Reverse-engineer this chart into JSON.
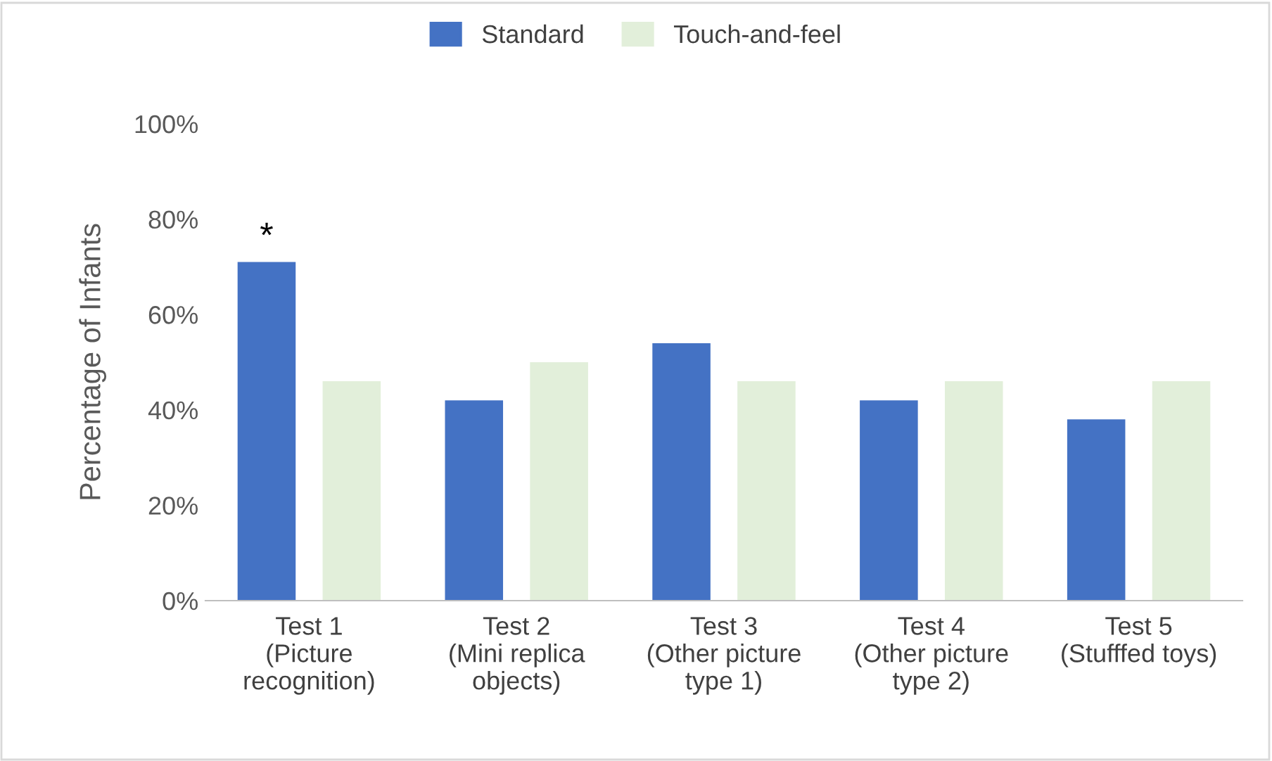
{
  "chart_data": {
    "type": "bar",
    "ylabel": "Percentage of Infants",
    "categories": [
      "Test 1\n(Picture\nrecognition)",
      "Test 2\n(Mini replica\nobjects)",
      "Test 3\n(Other picture\ntype 1)",
      "Test 4\n(Other picture\ntype 2)",
      "Test 5\n(Stufffed toys)"
    ],
    "series": [
      {
        "name": "Standard",
        "color": "#4472c4",
        "values": [
          71,
          42,
          54,
          42,
          38
        ]
      },
      {
        "name": "Touch-and-feel",
        "color": "#e2efda",
        "values": [
          46,
          50,
          46,
          46,
          46
        ]
      }
    ],
    "ylim": [
      0,
      100
    ],
    "yticks": [
      {
        "value": 0,
        "label": "0%"
      },
      {
        "value": 20,
        "label": "20%"
      },
      {
        "value": 40,
        "label": "40%"
      },
      {
        "value": 60,
        "label": "60%"
      },
      {
        "value": 80,
        "label": "80%"
      },
      {
        "value": 100,
        "label": "100%"
      }
    ],
    "annotations": [
      "*"
    ],
    "legend": "top",
    "grid": false
  }
}
